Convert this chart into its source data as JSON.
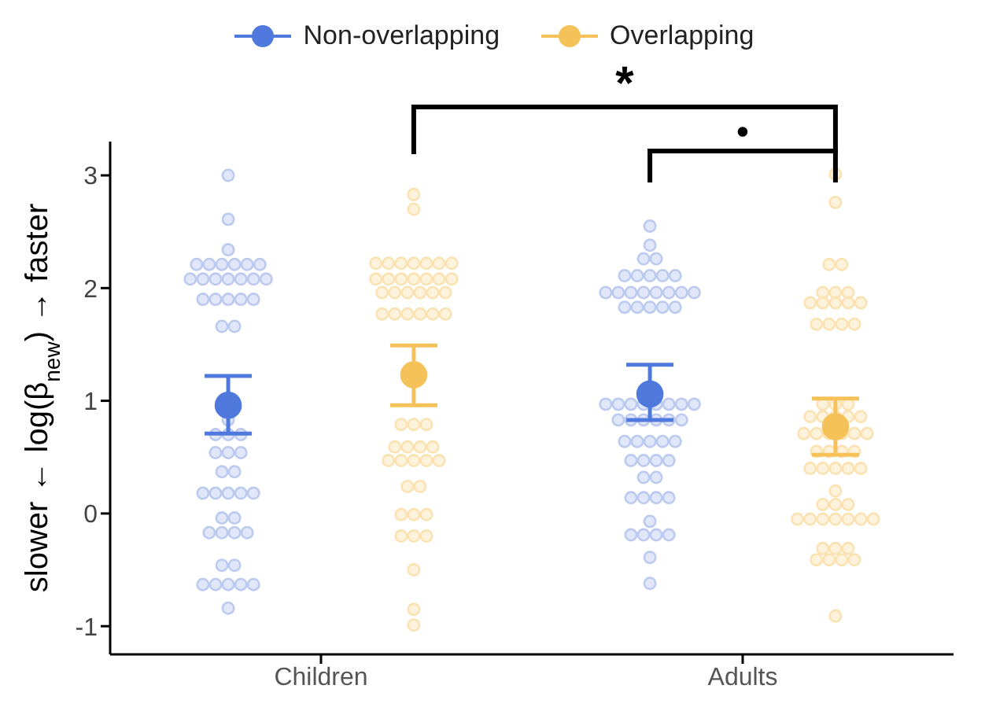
{
  "chart_data": {
    "type": "scatter",
    "ylabel": "slower ← log(β$_{new}$) → faster",
    "categories": [
      "Children",
      "Adults"
    ],
    "series": [
      {
        "color": "#bccaf0",
        "x": [
          "Children",
          "Children",
          "Children",
          "Children",
          "Children",
          "Children",
          "Children",
          "Children",
          "Children",
          "Children",
          "Children",
          "Children",
          "Children",
          "Children",
          "Children",
          "Children",
          "Children",
          "Children",
          "Children",
          "Children",
          "Children",
          "Children",
          "Children",
          "Children",
          "Children",
          "Children",
          "Children",
          "Children",
          "Children",
          "Children",
          "Children",
          "Children",
          "Children",
          "Children",
          "Children",
          "Children",
          "Children",
          "Children",
          "Children",
          "Children",
          "Children",
          "Children",
          "Children",
          "Children",
          "Children",
          "Children",
          "Children",
          "Children",
          "Children",
          "Children",
          "Children",
          "Adults",
          "Adults",
          "Adults",
          "Adults",
          "Adults",
          "Adults",
          "Adults",
          "Adults",
          "Adults",
          "Adults",
          "Adults",
          "Adults",
          "Adults",
          "Adults",
          "Adults",
          "Adults",
          "Adults",
          "Adults",
          "Adults",
          "Adults",
          "Adults",
          "Adults",
          "Adults",
          "Adults",
          "Adults",
          "Adults",
          "Adults",
          "Adults",
          "Adults",
          "Adults",
          "Adults",
          "Adults",
          "Adults",
          "Adults",
          "Adults",
          "Adults",
          "Adults",
          "Adults",
          "Adults",
          "Adults",
          "Adults",
          "Adults",
          "Adults",
          "Adults",
          "Adults",
          "Adults",
          "Adults",
          "Adults",
          "Adults",
          "Adults",
          "Adults",
          "Adults",
          "Adults",
          "Adults",
          "Adults",
          "Adults",
          "Adults",
          "Adults"
        ],
        "values": [
          3.0,
          2.61,
          2.34,
          2.21,
          2.21,
          2.21,
          2.21,
          2.21,
          2.21,
          2.08,
          2.08,
          2.08,
          2.08,
          2.08,
          2.08,
          2.08,
          1.9,
          1.9,
          1.9,
          1.9,
          1.9,
          1.66,
          1.66,
          0.83,
          0.7,
          0.7,
          0.7,
          0.54,
          0.54,
          0.54,
          0.37,
          0.37,
          0.18,
          0.18,
          0.18,
          0.18,
          0.18,
          -0.04,
          -0.04,
          -0.17,
          -0.17,
          -0.17,
          -0.17,
          -0.46,
          -0.46,
          -0.63,
          -0.63,
          -0.63,
          -0.63,
          -0.63,
          -0.84,
          2.55,
          2.38,
          2.26,
          2.26,
          2.11,
          2.11,
          2.11,
          2.11,
          2.11,
          1.96,
          1.96,
          1.96,
          1.96,
          1.96,
          1.96,
          1.96,
          1.96,
          1.83,
          1.83,
          1.83,
          1.83,
          1.83,
          0.97,
          0.97,
          0.97,
          0.97,
          0.97,
          0.97,
          0.97,
          0.97,
          0.83,
          0.83,
          0.83,
          0.83,
          0.83,
          0.83,
          0.64,
          0.64,
          0.64,
          0.64,
          0.64,
          0.47,
          0.47,
          0.47,
          0.47,
          0.32,
          0.32,
          0.14,
          0.14,
          0.14,
          0.14,
          -0.07,
          -0.19,
          -0.19,
          -0.19,
          -0.19,
          -0.39,
          -0.62
        ]
      },
      {
        "color": "#fbe2b2",
        "x": [
          "Children",
          "Children",
          "Children",
          "Children",
          "Children",
          "Children",
          "Children",
          "Children",
          "Children",
          "Children",
          "Children",
          "Children",
          "Children",
          "Children",
          "Children",
          "Children",
          "Children",
          "Children",
          "Children",
          "Children",
          "Children",
          "Children",
          "Children",
          "Children",
          "Children",
          "Children",
          "Children",
          "Children",
          "Children",
          "Children",
          "Children",
          "Children",
          "Children",
          "Children",
          "Children",
          "Children",
          "Children",
          "Children",
          "Children",
          "Children",
          "Children",
          "Children",
          "Children",
          "Children",
          "Children",
          "Children",
          "Children",
          "Children",
          "Children",
          "Children",
          "Children",
          "Adults",
          "Adults",
          "Adults",
          "Adults",
          "Adults",
          "Adults",
          "Adults",
          "Adults",
          "Adults",
          "Adults",
          "Adults",
          "Adults",
          "Adults",
          "Adults",
          "Adults",
          "Adults",
          "Adults",
          "Adults",
          "Adults",
          "Adults",
          "Adults",
          "Adults",
          "Adults",
          "Adults",
          "Adults",
          "Adults",
          "Adults",
          "Adults",
          "Adults",
          "Adults",
          "Adults",
          "Adults",
          "Adults",
          "Adults",
          "Adults",
          "Adults",
          "Adults",
          "Adults",
          "Adults",
          "Adults",
          "Adults",
          "Adults",
          "Adults",
          "Adults",
          "Adults",
          "Adults",
          "Adults",
          "Adults",
          "Adults",
          "Adults",
          "Adults",
          "Adults",
          "Adults",
          "Adults",
          "Adults",
          "Adults",
          "Adults",
          "Adults"
        ],
        "values": [
          2.83,
          2.7,
          2.22,
          2.22,
          2.22,
          2.22,
          2.22,
          2.22,
          2.22,
          2.08,
          2.08,
          2.08,
          2.08,
          2.08,
          2.08,
          2.08,
          1.96,
          1.96,
          1.96,
          1.96,
          1.96,
          1.96,
          1.77,
          1.77,
          1.77,
          1.77,
          1.77,
          1.77,
          0.79,
          0.79,
          0.79,
          0.59,
          0.59,
          0.59,
          0.59,
          0.47,
          0.47,
          0.47,
          0.47,
          0.47,
          0.24,
          0.24,
          -0.01,
          -0.01,
          -0.01,
          -0.2,
          -0.2,
          -0.2,
          -0.5,
          -0.85,
          -0.99,
          3.01,
          2.76,
          2.21,
          2.21,
          1.96,
          1.96,
          1.96,
          1.87,
          1.87,
          1.87,
          1.87,
          1.87,
          1.68,
          1.68,
          1.68,
          1.68,
          0.97,
          0.97,
          0.97,
          0.86,
          0.86,
          0.86,
          0.86,
          0.86,
          0.71,
          0.71,
          0.71,
          0.71,
          0.71,
          0.71,
          0.55,
          0.55,
          0.55,
          0.55,
          0.4,
          0.4,
          0.4,
          0.4,
          0.4,
          0.2,
          0.08,
          0.08,
          0.08,
          -0.05,
          -0.05,
          -0.05,
          -0.05,
          -0.05,
          -0.05,
          -0.05,
          -0.31,
          -0.31,
          -0.31,
          -0.41,
          -0.41,
          -0.41,
          -0.41,
          -0.91
        ]
      },
      {
        "name": "Non-overlapping",
        "color": "#4f79dd",
        "x": [
          "Children",
          "Adults"
        ],
        "values": [
          0.96,
          1.06
        ],
        "errors": [
          [
            0.71,
            1.22
          ],
          [
            0.83,
            1.32
          ]
        ]
      },
      {
        "name": "Overlapping",
        "color": "#f5c25a",
        "x": [
          "Children",
          "Adults"
        ],
        "values": [
          1.23,
          0.77
        ],
        "errors": [
          [
            0.96,
            1.49
          ],
          [
            0.52,
            1.02
          ]
        ]
      }
    ],
    "ylim": [
      -1.25,
      3.3
    ],
    "yticks": [
      -1,
      0,
      1,
      2,
      3
    ],
    "marker": "circle",
    "legend": "top",
    "grid": false,
    "annotations": [
      "*",
      "•"
    ]
  }
}
